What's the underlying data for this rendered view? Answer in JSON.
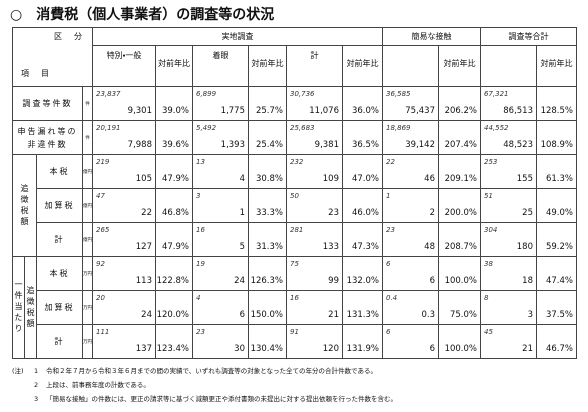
{
  "title": "○　消費税（個人事業者）の調査等の状況",
  "table": {
    "corner": {
      "top": "区　分",
      "bottom": "項　目"
    },
    "groups": [
      {
        "name": "実地調査",
        "subs": [
          {
            "label": "特別・一般",
            "ratio": "対前年比"
          },
          {
            "label": "着眼",
            "ratio": "対前年比"
          },
          {
            "label": "計",
            "ratio": "対前年比"
          }
        ]
      },
      {
        "name": "簡易な接触",
        "subs": [
          {
            "ratio": "対前年比"
          }
        ]
      },
      {
        "name": "調査等合計",
        "subs": [
          {
            "ratio": "対前年比"
          }
        ]
      }
    ],
    "rows": [
      {
        "label": [
          "調査等件数"
        ],
        "unit": "件",
        "cells": [
          [
            "23,837",
            "9,301",
            "39.0%"
          ],
          [
            "6,899",
            "1,775",
            "25.7%"
          ],
          [
            "30,736",
            "11,076",
            "36.0%"
          ],
          [
            "36,585",
            "75,437",
            "206.2%"
          ],
          [
            "67,321",
            "86,513",
            "128.5%"
          ]
        ]
      },
      {
        "label": [
          "申告漏れ等の",
          "非違件数"
        ],
        "unit": "件",
        "cells": [
          [
            "20,191",
            "7,988",
            "39.6%"
          ],
          [
            "5,492",
            "1,393",
            "25.4%"
          ],
          [
            "25,683",
            "9,381",
            "36.5%"
          ],
          [
            "18,869",
            "39,142",
            "207.4%"
          ],
          [
            "44,552",
            "48,523",
            "108.9%"
          ]
        ]
      }
    ],
    "row_groups": [
      {
        "label": "追徴税額",
        "rows": [
          {
            "label": [
              "本税"
            ],
            "unit": "億円",
            "cells": [
              [
                "219",
                "105",
                "47.9%"
              ],
              [
                "13",
                "4",
                "30.8%"
              ],
              [
                "232",
                "109",
                "47.0%"
              ],
              [
                "22",
                "46",
                "209.1%"
              ],
              [
                "253",
                "155",
                "61.3%"
              ]
            ]
          },
          {
            "label": [
              "加算税"
            ],
            "unit": "億円",
            "cells": [
              [
                "47",
                "22",
                "46.8%"
              ],
              [
                "3",
                "1",
                "33.3%"
              ],
              [
                "50",
                "23",
                "46.0%"
              ],
              [
                "1",
                "2",
                "200.0%"
              ],
              [
                "51",
                "25",
                "49.0%"
              ]
            ]
          },
          {
            "label": [
              "計"
            ],
            "unit": "億円",
            "cells": [
              [
                "265",
                "127",
                "47.9%"
              ],
              [
                "16",
                "5",
                "31.3%"
              ],
              [
                "281",
                "133",
                "47.3%"
              ],
              [
                "23",
                "48",
                "208.7%"
              ],
              [
                "304",
                "180",
                "59.2%"
              ]
            ]
          }
        ]
      },
      {
        "label": "一件当たり",
        "sublabel": "追徴税額",
        "rows": [
          {
            "label": [
              "本税"
            ],
            "unit": "万円",
            "cells": [
              [
                "92",
                "113",
                "122.8%"
              ],
              [
                "19",
                "24",
                "126.3%"
              ],
              [
                "75",
                "99",
                "132.0%"
              ],
              [
                "6",
                "6",
                "100.0%"
              ],
              [
                "38",
                "18",
                "47.4%"
              ]
            ]
          },
          {
            "label": [
              "加算税"
            ],
            "unit": "万円",
            "cells": [
              [
                "20",
                "24",
                "120.0%"
              ],
              [
                "4",
                "6",
                "150.0%"
              ],
              [
                "16",
                "21",
                "131.3%"
              ],
              [
                "0.4",
                "0.3",
                "75.0%"
              ],
              [
                "8",
                "3",
                "37.5%"
              ]
            ]
          },
          {
            "label": [
              "計"
            ],
            "unit": "万円",
            "cells": [
              [
                "111",
                "137",
                "123.4%"
              ],
              [
                "23",
                "30",
                "130.4%"
              ],
              [
                "91",
                "120",
                "131.9%"
              ],
              [
                "6",
                "6",
                "100.0%"
              ],
              [
                "45",
                "21",
                "46.7%"
              ]
            ]
          }
        ]
      }
    ]
  },
  "notes": {
    "label": "(注)",
    "items": [
      {
        "num": "1",
        "text": "令和２年７月から令和３年６月までの間の実績で、いずれも調査等の対象となった全ての年分の合計件数である。"
      },
      {
        "num": "2",
        "text": "上段は、前事務年度の計数である。"
      },
      {
        "num": "3",
        "text": "「簡易な接触」の件数には、更正の請求等に基づく減額更正や添付書類の未提出に対する提出依頼を行った件数を含む。"
      }
    ]
  }
}
